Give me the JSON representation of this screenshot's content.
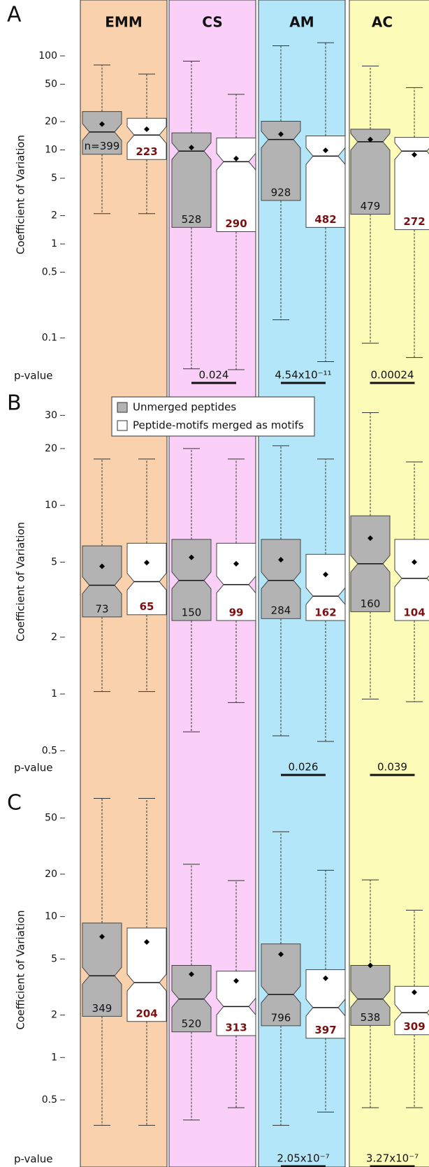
{
  "columns": [
    {
      "name": "EMM",
      "color": "#f9d2ad"
    },
    {
      "name": "CS",
      "color": "#fbd0f8"
    },
    {
      "name": "AM",
      "color": "#b3e6f8"
    },
    {
      "name": "AC",
      "color": "#fcfbb8"
    }
  ],
  "chart_data": [
    {
      "type": "box",
      "panel": "A",
      "ylabel": "Coefficient of Variation",
      "log_scale": true,
      "ylim": [
        0.035,
        320
      ],
      "yticks": [
        0.1,
        0.5,
        1,
        2,
        5,
        10,
        20,
        50,
        100
      ],
      "pvalue_label": "p-value",
      "pvalues": [
        null,
        "0.024",
        "4.54x10⁻¹¹",
        "0.00024"
      ],
      "series": [
        {
          "color": "#b3b3b3",
          "boxes": [
            {
              "whislo": 2.1,
              "q1": 9,
              "med": 15.5,
              "q3": 25.6,
              "whishi": 80,
              "mean": 18.8,
              "n": {
                "value": 399,
                "label": "n=399"
              }
            },
            {
              "whislo": 0.047,
              "q1": 1.5,
              "med": 9.7,
              "q3": 15.2,
              "whishi": 88,
              "mean": 10.6,
              "n": 528
            },
            {
              "whislo": 0.156,
              "q1": 2.9,
              "med": 12.9,
              "q3": 20.2,
              "whishi": 128,
              "mean": 14.7,
              "n": 928
            },
            {
              "whislo": 0.088,
              "q1": 2.07,
              "med": 12.2,
              "q3": 16.6,
              "whishi": 78,
              "mean": 12.9,
              "n": 479
            }
          ]
        },
        {
          "color": "#ffffff",
          "boxes": [
            {
              "whislo": 2.1,
              "q1": 7.9,
              "med": 14.4,
              "q3": 21.7,
              "whishi": 64,
              "mean": 16.6,
              "n": 223
            },
            {
              "whislo": 0.046,
              "q1": 1.35,
              "med": 7.5,
              "q3": 13.4,
              "whishi": 39,
              "mean": 8.1,
              "n": 290
            },
            {
              "whislo": 0.056,
              "q1": 1.5,
              "med": 8.6,
              "q3": 14.1,
              "whishi": 138,
              "mean": 9.9,
              "n": 482
            },
            {
              "whislo": 0.062,
              "q1": 1.42,
              "med": 9.7,
              "q3": 13.6,
              "whishi": 46,
              "mean": 8.9,
              "n": 272
            }
          ]
        }
      ]
    },
    {
      "type": "box",
      "panel": "B",
      "ylabel": "Coefficient of Variation",
      "log_scale": true,
      "ylim": [
        0.43,
        36
      ],
      "yticks": [
        0.5,
        1,
        2,
        5,
        10,
        20,
        30
      ],
      "pvalue_label": "p-value",
      "pvalues": [
        null,
        null,
        "0.026",
        "0.039"
      ],
      "legend": [
        {
          "name": "Unmerged peptides",
          "color": "#b3b3b3"
        },
        {
          "name": "Peptide-motifs merged as motifs",
          "color": "#ffffff"
        }
      ],
      "series": [
        {
          "color": "#b3b3b3",
          "boxes": [
            {
              "whislo": 1.03,
              "q1": 2.56,
              "med": 3.77,
              "q3": 6.1,
              "whishi": 17.6,
              "mean": 4.75,
              "n": 73
            },
            {
              "whislo": 0.63,
              "q1": 2.45,
              "med": 4.0,
              "q3": 6.6,
              "whishi": 20,
              "mean": 5.3,
              "n": 150
            },
            {
              "whislo": 0.6,
              "q1": 2.51,
              "med": 4.0,
              "q3": 6.6,
              "whishi": 20.7,
              "mean": 5.15,
              "n": 284
            },
            {
              "whislo": 0.94,
              "q1": 2.73,
              "med": 4.9,
              "q3": 8.8,
              "whishi": 31,
              "mean": 6.7,
              "n": 160
            }
          ]
        },
        {
          "color": "#ffffff",
          "boxes": [
            {
              "whislo": 1.03,
              "q1": 2.63,
              "med": 3.94,
              "q3": 6.3,
              "whishi": 17.6,
              "mean": 4.97,
              "n": 65
            },
            {
              "whislo": 0.9,
              "q1": 2.45,
              "med": 3.8,
              "q3": 6.3,
              "whishi": 17.6,
              "mean": 4.9,
              "n": 99
            },
            {
              "whislo": 0.56,
              "q1": 2.45,
              "med": 3.3,
              "q3": 5.5,
              "whishi": 17.6,
              "mean": 4.3,
              "n": 162
            },
            {
              "whislo": 0.91,
              "q1": 2.45,
              "med": 4.1,
              "q3": 6.6,
              "whishi": 17,
              "mean": 5.0,
              "n": 104
            }
          ]
        }
      ]
    },
    {
      "type": "box",
      "panel": "C",
      "ylabel": "Coefficient of Variation",
      "log_scale": true,
      "ylim": [
        0.23,
        76
      ],
      "yticks": [
        0.5,
        1,
        2,
        5,
        10,
        20,
        50
      ],
      "pvalue_label": "p-value",
      "pvalues": [
        null,
        null,
        "2.05x10⁻⁷",
        "3.27x10⁻⁷"
      ],
      "series": [
        {
          "color": "#b3b3b3",
          "boxes": [
            {
              "whislo": 0.33,
              "q1": 1.96,
              "med": 3.8,
              "q3": 9.0,
              "whishi": 69,
              "mean": 7.2,
              "n": 349
            },
            {
              "whislo": 0.36,
              "q1": 1.52,
              "med": 2.6,
              "q3": 4.5,
              "whishi": 23.5,
              "mean": 3.9,
              "n": 520
            },
            {
              "whislo": 0.33,
              "q1": 1.68,
              "med": 2.8,
              "q3": 6.4,
              "whishi": 40,
              "mean": 5.4,
              "n": 796
            },
            {
              "whislo": 0.44,
              "q1": 1.69,
              "med": 2.6,
              "q3": 4.5,
              "whishi": 18.2,
              "mean": 4.5,
              "n": 538
            }
          ]
        },
        {
          "color": "#ffffff",
          "boxes": [
            {
              "whislo": 0.33,
              "q1": 1.8,
              "med": 3.4,
              "q3": 8.3,
              "whishi": 69,
              "mean": 6.6,
              "n": 204
            },
            {
              "whislo": 0.44,
              "q1": 1.43,
              "med": 2.3,
              "q3": 4.1,
              "whishi": 18,
              "mean": 3.5,
              "n": 313
            },
            {
              "whislo": 0.41,
              "q1": 1.37,
              "med": 2.26,
              "q3": 4.2,
              "whishi": 21.3,
              "mean": 3.65,
              "n": 397
            },
            {
              "whislo": 0.44,
              "q1": 1.45,
              "med": 2.08,
              "q3": 3.2,
              "whishi": 11.1,
              "mean": 2.9,
              "n": 309
            }
          ]
        }
      ]
    }
  ]
}
